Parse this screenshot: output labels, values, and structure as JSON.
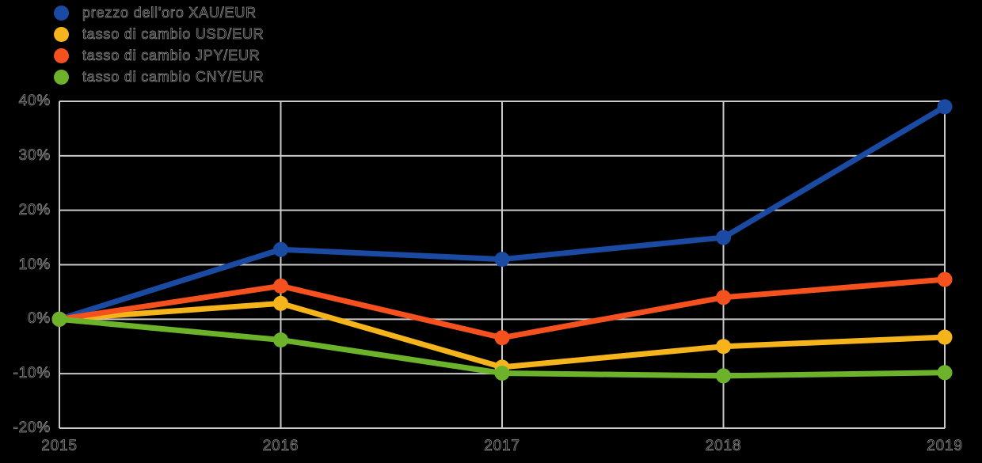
{
  "page": {
    "background": "#000000",
    "text_color": "#8a8a8a"
  },
  "chart_data": {
    "type": "line",
    "x_labels": [
      "2015",
      "2016",
      "2017",
      "2018",
      "2019"
    ],
    "series": [
      {
        "name": "prezzo dell'oro XAU/EUR",
        "color": "#1B4AA2",
        "values": [
          0,
          12.8,
          11.0,
          15.0,
          39.0
        ]
      },
      {
        "name": "tasso di cambio USD/EUR",
        "color": "#F6B41C",
        "values": [
          0,
          2.9,
          -8.8,
          -5.0,
          -3.3
        ]
      },
      {
        "name": "tasso di cambio JPY/EUR",
        "color": "#F4511E",
        "values": [
          0,
          6.1,
          -3.4,
          4.0,
          7.3
        ]
      },
      {
        "name": "tasso di cambio CNY/EUR",
        "color": "#6CB32B",
        "values": [
          0,
          -3.8,
          -9.9,
          -10.4,
          -9.8
        ]
      }
    ],
    "ylim": [
      -20,
      40
    ],
    "yticks": [
      40,
      30,
      20,
      10,
      0,
      -10,
      -20
    ],
    "ytick_labels": [
      "40%",
      "30%",
      "20%",
      "10%",
      "0%",
      "-10%",
      "-20%"
    ],
    "grid": true,
    "gridline_color": "#C9C9C9",
    "legend_position": "top-left",
    "title": "",
    "xlabel": "",
    "ylabel": ""
  }
}
